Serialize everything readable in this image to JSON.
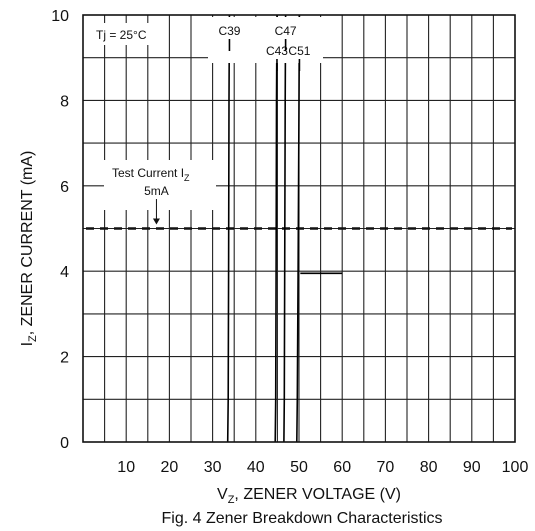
{
  "chart_data": {
    "type": "line",
    "title": "",
    "caption": "Fig. 4  Zener Breakdown Characteristics",
    "xlabel": {
      "main": "V",
      "sub": "Z",
      "rest": ", ZENER VOLTAGE (V)"
    },
    "ylabel": {
      "main": "I",
      "sub": "Z",
      "rest": ", ZENER CURRENT (mA)"
    },
    "xlim": [
      0,
      100
    ],
    "ylim": [
      0,
      10
    ],
    "x_ticks": [
      10,
      20,
      30,
      40,
      50,
      60,
      70,
      80,
      90,
      100
    ],
    "y_ticks": [
      0,
      2,
      4,
      6,
      8,
      10
    ],
    "grid": true,
    "condition_label": "Tj = 25°C",
    "test_current": {
      "label_main": "Test Current I",
      "label_sub": "Z",
      "value_label": "5mA",
      "arrow_x": 17,
      "value": 5
    },
    "series": [
      {
        "name": "C39",
        "x": [
          33.5,
          33.6,
          33.7,
          33.8,
          33.9
        ],
        "y": [
          0,
          1,
          4,
          8,
          10
        ]
      },
      {
        "name": "C43",
        "x": [
          44.5,
          44.6,
          44.7,
          44.8,
          44.9
        ],
        "y": [
          0,
          1,
          4,
          8,
          10
        ]
      },
      {
        "name": "C47",
        "x": [
          46.5,
          46.6,
          46.7,
          46.8,
          46.9
        ],
        "y": [
          0,
          1,
          4,
          8,
          10
        ]
      },
      {
        "name": "C51",
        "x": [
          49.5,
          49.6,
          49.8,
          50.0,
          50.1
        ],
        "y": [
          0,
          1,
          4,
          8,
          10
        ]
      }
    ],
    "label_positions": [
      {
        "name": "C39",
        "anchor": "top"
      },
      {
        "name": "C43",
        "anchor": "upper"
      },
      {
        "name": "C47",
        "anchor": "top"
      },
      {
        "name": "C51",
        "anchor": "upper"
      }
    ]
  }
}
